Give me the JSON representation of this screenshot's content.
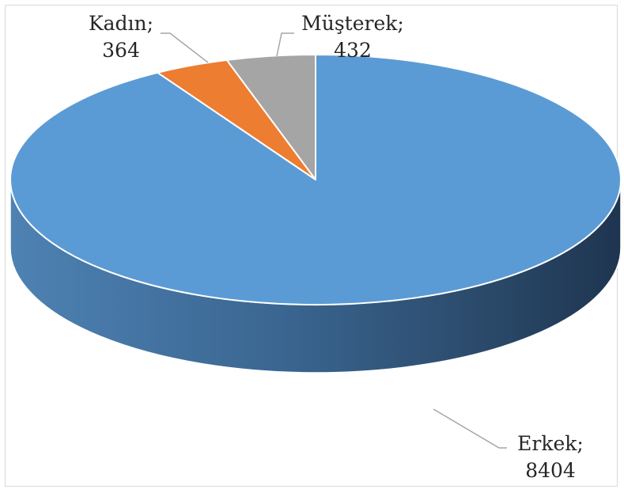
{
  "chart_data": {
    "type": "pie",
    "style": "3d",
    "categories": [
      "Erkek",
      "Kadın",
      "Müşterek"
    ],
    "values": [
      8404,
      364,
      432
    ],
    "colors": [
      "#5b9bd5",
      "#ed7d31",
      "#a5a5a5"
    ],
    "labels": [
      {
        "line1": "Erkek;",
        "line2": "8404"
      },
      {
        "line1": "Kadın;",
        "line2": "364"
      },
      {
        "line1": "Müşterek;",
        "line2": "432"
      }
    ],
    "title": "",
    "legend": "none",
    "data_labels": "outside-with-leader-lines"
  }
}
